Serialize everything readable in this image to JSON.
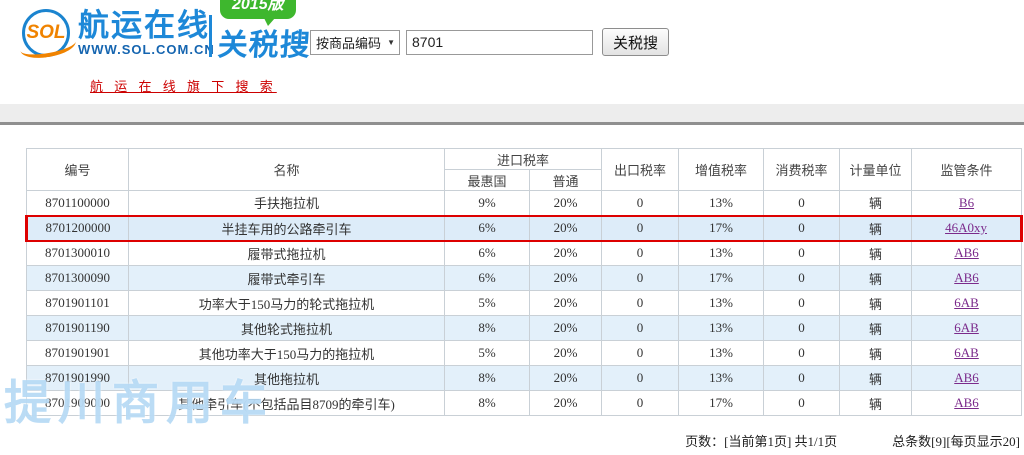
{
  "header": {
    "logo": {
      "sol": "SOL",
      "brand": "航运在线",
      "url": "WWW.SOL.COM.CN",
      "product": "关税搜",
      "badge": "2015版"
    },
    "sub_link": "航 运 在 线 旗 下 搜 索",
    "search": {
      "category": "按商品编码",
      "arrow_icon": "▼",
      "query": "8701",
      "button": "关税搜"
    }
  },
  "table": {
    "columns": {
      "code": "编号",
      "name": "名称",
      "import_rate": "进口税率",
      "mfn": "最惠国",
      "general": "普通",
      "export_rate": "出口税率",
      "vat": "增值税率",
      "consumption": "消费税率",
      "unit": "计量单位",
      "supervision": "监管条件"
    },
    "rows": [
      {
        "code": "8701100000",
        "name": "手扶拖拉机",
        "mfn": "9%",
        "general": "20%",
        "export_rate": "0",
        "vat": "13%",
        "consumption": "0",
        "unit": "辆",
        "supervision": "B6"
      },
      {
        "code": "8701200000",
        "name": "半挂车用的公路牵引车",
        "mfn": "6%",
        "general": "20%",
        "export_rate": "0",
        "vat": "17%",
        "consumption": "0",
        "unit": "辆",
        "supervision": "46A0xy"
      },
      {
        "code": "8701300010",
        "name": "履带式拖拉机",
        "mfn": "6%",
        "general": "20%",
        "export_rate": "0",
        "vat": "13%",
        "consumption": "0",
        "unit": "辆",
        "supervision": "AB6"
      },
      {
        "code": "8701300090",
        "name": "履带式牵引车",
        "mfn": "6%",
        "general": "20%",
        "export_rate": "0",
        "vat": "17%",
        "consumption": "0",
        "unit": "辆",
        "supervision": "AB6"
      },
      {
        "code": "8701901101",
        "name": "功率大于150马力的轮式拖拉机",
        "mfn": "5%",
        "general": "20%",
        "export_rate": "0",
        "vat": "13%",
        "consumption": "0",
        "unit": "辆",
        "supervision": "6AB"
      },
      {
        "code": "8701901190",
        "name": "其他轮式拖拉机",
        "mfn": "8%",
        "general": "20%",
        "export_rate": "0",
        "vat": "13%",
        "consumption": "0",
        "unit": "辆",
        "supervision": "6AB"
      },
      {
        "code": "8701901901",
        "name": "其他功率大于150马力的拖拉机",
        "mfn": "5%",
        "general": "20%",
        "export_rate": "0",
        "vat": "13%",
        "consumption": "0",
        "unit": "辆",
        "supervision": "6AB"
      },
      {
        "code": "8701901990",
        "name": "其他拖拉机",
        "mfn": "8%",
        "general": "20%",
        "export_rate": "0",
        "vat": "13%",
        "consumption": "0",
        "unit": "辆",
        "supervision": "AB6"
      },
      {
        "code": "8701909000",
        "name": "其他牵引车(不包括品目8709的牵引车)",
        "mfn": "8%",
        "general": "20%",
        "export_rate": "0",
        "vat": "17%",
        "consumption": "0",
        "unit": "辆",
        "supervision": "AB6"
      }
    ]
  },
  "pagination": {
    "pages": "页数：[当前第1页] 共1/1页",
    "total": "总条数[9][每页显示20]"
  },
  "watermark": {
    "text": "提川商用车"
  },
  "colors": {
    "brand_blue": "#1d88d8",
    "logo_orange": "#f08300",
    "badge_green": "#3eb72e",
    "red_link": "#cc0000",
    "highlight_border": "#dd0000",
    "row_alt_blue": "#e3f0fa",
    "visited_link_purple": "#7b2a8b"
  }
}
